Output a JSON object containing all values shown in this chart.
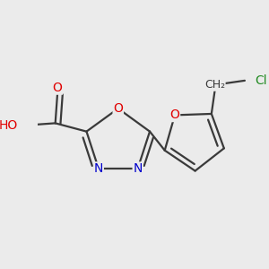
{
  "background_color": "#ebebeb",
  "bond_color": "#3a3a3a",
  "bond_width": 1.6,
  "atom_colors": {
    "O": "#e00000",
    "N": "#0000cc",
    "Cl": "#228b22",
    "H": "#707070",
    "C": "#3a3a3a"
  },
  "font_size": 10,
  "fig_width": 3.0,
  "fig_height": 3.0,
  "dpi": 100
}
